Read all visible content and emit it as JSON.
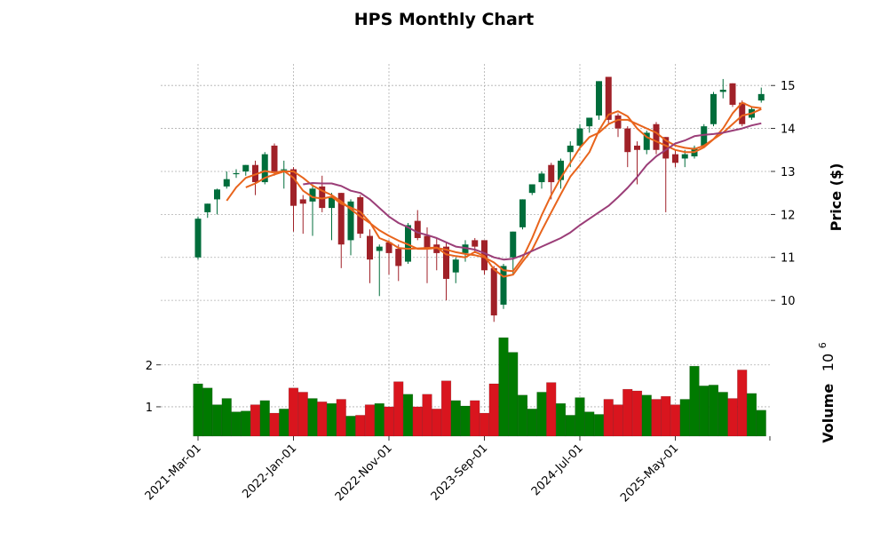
{
  "chart_data": {
    "type": "candlestick",
    "title": "HPS Monthly Chart",
    "price_panel": {
      "ylabel": "Price ($)",
      "ylim": [
        9.3,
        15.5
      ],
      "yticks": [
        "10",
        "11",
        "12",
        "13",
        "14",
        "15"
      ],
      "grid": true
    },
    "volume_panel": {
      "ylabel": "Volume",
      "ylabel_exponent": "10",
      "ylabel_exponent_power": "6",
      "ylim": [
        0.3,
        2.8
      ],
      "yticks": [
        "1",
        "2"
      ],
      "grid": true
    },
    "x_tick_labels": [
      "2021-Mar-01",
      "2022-Jan-01",
      "2022-Nov-01",
      "2023-Sep-01",
      "2024-Jul-01",
      "2025-May-01"
    ],
    "x_tick_indices": [
      0,
      10,
      20,
      30,
      40,
      50
    ],
    "colors": {
      "up": "#006d3b",
      "down": "#a02128",
      "volume_up": "#007a00",
      "volume_down": "#d9151e",
      "ma_fast": "#e8641c",
      "ma_mid": "#e8641c",
      "ma_slow": "#9b3e78"
    },
    "candles": [
      {
        "month": "2021-Mar",
        "open": 11.0,
        "high": 11.95,
        "low": 10.95,
        "close": 11.9
      },
      {
        "month": "2021-Apr",
        "open": 12.05,
        "high": 12.25,
        "low": 11.92,
        "close": 12.25
      },
      {
        "month": "2021-May",
        "open": 12.35,
        "high": 12.6,
        "low": 12.0,
        "close": 12.58
      },
      {
        "month": "2021-Jun",
        "open": 12.65,
        "high": 13.0,
        "low": 12.6,
        "close": 12.82
      },
      {
        "month": "2021-Jul",
        "open": 12.95,
        "high": 13.05,
        "low": 12.85,
        "close": 12.96
      },
      {
        "month": "2021-Aug",
        "open": 13.0,
        "high": 13.15,
        "low": 12.9,
        "close": 13.15
      },
      {
        "month": "2021-Sep",
        "open": 13.15,
        "high": 13.25,
        "low": 12.45,
        "close": 12.75
      },
      {
        "month": "2021-Oct",
        "open": 12.75,
        "high": 13.45,
        "low": 12.7,
        "close": 13.4
      },
      {
        "month": "2021-Nov",
        "open": 13.6,
        "high": 13.65,
        "low": 12.9,
        "close": 13.0
      },
      {
        "month": "2021-Dec",
        "open": 13.05,
        "high": 13.25,
        "low": 12.6,
        "close": 13.05
      },
      {
        "month": "2022-Jan",
        "open": 13.05,
        "high": 13.1,
        "low": 11.6,
        "close": 12.2
      },
      {
        "month": "2022-Feb",
        "open": 12.35,
        "high": 12.45,
        "low": 11.55,
        "close": 12.25
      },
      {
        "month": "2022-Mar",
        "open": 12.3,
        "high": 12.7,
        "low": 11.5,
        "close": 12.6
      },
      {
        "month": "2022-Apr",
        "open": 12.65,
        "high": 12.9,
        "low": 12.05,
        "close": 12.15
      },
      {
        "month": "2022-May",
        "open": 12.15,
        "high": 12.5,
        "low": 11.4,
        "close": 12.4
      },
      {
        "month": "2022-Jun",
        "open": 12.5,
        "high": 12.5,
        "low": 10.75,
        "close": 11.3
      },
      {
        "month": "2022-Jul",
        "open": 11.4,
        "high": 12.35,
        "low": 11.05,
        "close": 12.3
      },
      {
        "month": "2022-Aug",
        "open": 12.4,
        "high": 12.45,
        "low": 11.45,
        "close": 11.55
      },
      {
        "month": "2022-Sep",
        "open": 11.5,
        "high": 11.65,
        "low": 10.4,
        "close": 10.95
      },
      {
        "month": "2022-Oct",
        "open": 11.15,
        "high": 11.3,
        "low": 10.1,
        "close": 11.25
      },
      {
        "month": "2022-Nov",
        "open": 11.35,
        "high": 11.4,
        "low": 10.6,
        "close": 11.1
      },
      {
        "month": "2022-Dec",
        "open": 11.2,
        "high": 11.3,
        "low": 10.45,
        "close": 10.8
      },
      {
        "month": "2023-Jan",
        "open": 10.9,
        "high": 11.8,
        "low": 10.85,
        "close": 11.75
      },
      {
        "month": "2023-Feb",
        "open": 11.85,
        "high": 12.1,
        "low": 11.4,
        "close": 11.45
      },
      {
        "month": "2023-Mar",
        "open": 11.5,
        "high": 11.7,
        "low": 10.4,
        "close": 11.2
      },
      {
        "month": "2023-Apr",
        "open": 11.3,
        "high": 11.45,
        "low": 10.7,
        "close": 11.1
      },
      {
        "month": "2023-May",
        "open": 11.25,
        "high": 11.35,
        "low": 10.0,
        "close": 10.5
      },
      {
        "month": "2023-Jun",
        "open": 10.65,
        "high": 11.0,
        "low": 10.4,
        "close": 10.95
      },
      {
        "month": "2023-Jul",
        "open": 11.1,
        "high": 11.4,
        "low": 10.9,
        "close": 11.3
      },
      {
        "month": "2023-Aug",
        "open": 11.4,
        "high": 11.45,
        "low": 11.1,
        "close": 11.25
      },
      {
        "month": "2023-Sep",
        "open": 11.4,
        "high": 11.4,
        "low": 10.6,
        "close": 10.7
      },
      {
        "month": "2023-Oct",
        "open": 10.75,
        "high": 10.8,
        "low": 9.5,
        "close": 9.65
      },
      {
        "month": "2023-Nov",
        "open": 9.9,
        "high": 10.85,
        "low": 9.8,
        "close": 10.8
      },
      {
        "month": "2023-Dec",
        "open": 11.0,
        "high": 11.6,
        "low": 10.6,
        "close": 11.6
      },
      {
        "month": "2024-Jan",
        "open": 11.7,
        "high": 12.35,
        "low": 11.65,
        "close": 12.35
      },
      {
        "month": "2024-Feb",
        "open": 12.5,
        "high": 12.7,
        "low": 12.45,
        "close": 12.7
      },
      {
        "month": "2024-Mar",
        "open": 12.75,
        "high": 13.0,
        "low": 12.6,
        "close": 12.95
      },
      {
        "month": "2024-Apr",
        "open": 13.15,
        "high": 13.2,
        "low": 12.35,
        "close": 12.75
      },
      {
        "month": "2024-May",
        "open": 12.8,
        "high": 13.3,
        "low": 12.6,
        "close": 13.25
      },
      {
        "month": "2024-Jun",
        "open": 13.45,
        "high": 13.7,
        "low": 13.1,
        "close": 13.6
      },
      {
        "month": "2024-Jul",
        "open": 13.6,
        "high": 14.1,
        "low": 13.5,
        "close": 14.0
      },
      {
        "month": "2024-Aug",
        "open": 14.05,
        "high": 14.25,
        "low": 13.9,
        "close": 14.25
      },
      {
        "month": "2024-Sep",
        "open": 14.3,
        "high": 15.1,
        "low": 14.2,
        "close": 15.1
      },
      {
        "month": "2024-Oct",
        "open": 15.2,
        "high": 15.2,
        "low": 14.1,
        "close": 14.2
      },
      {
        "month": "2024-Nov",
        "open": 14.3,
        "high": 14.35,
        "low": 13.8,
        "close": 14.0
      },
      {
        "month": "2024-Dec",
        "open": 14.0,
        "high": 14.05,
        "low": 13.1,
        "close": 13.45
      },
      {
        "month": "2025-Jan",
        "open": 13.6,
        "high": 13.7,
        "low": 12.7,
        "close": 13.5
      },
      {
        "month": "2025-Feb",
        "open": 13.5,
        "high": 13.95,
        "low": 13.4,
        "close": 13.9
      },
      {
        "month": "2025-Mar",
        "open": 14.1,
        "high": 14.15,
        "low": 13.4,
        "close": 13.5
      },
      {
        "month": "2025-Apr",
        "open": 13.8,
        "high": 13.8,
        "low": 12.05,
        "close": 13.3
      },
      {
        "month": "2025-May",
        "open": 13.4,
        "high": 13.5,
        "low": 13.1,
        "close": 13.2
      },
      {
        "month": "2025-Jun",
        "open": 13.3,
        "high": 13.5,
        "low": 13.1,
        "close": 13.4
      },
      {
        "month": "2025-Jul",
        "open": 13.35,
        "high": 13.6,
        "low": 13.3,
        "close": 13.55
      },
      {
        "month": "2025-Aug",
        "open": 13.6,
        "high": 14.1,
        "low": 13.55,
        "close": 14.05
      },
      {
        "month": "2025-Sep",
        "open": 14.1,
        "high": 14.85,
        "low": 14.05,
        "close": 14.8
      },
      {
        "month": "2025-Oct",
        "open": 14.85,
        "high": 15.15,
        "low": 14.7,
        "close": 14.9
      },
      {
        "month": "2025-Nov",
        "open": 15.05,
        "high": 15.05,
        "low": 14.5,
        "close": 14.55
      },
      {
        "month": "2025-Dec",
        "open": 14.6,
        "high": 14.65,
        "low": 14.05,
        "close": 14.1
      },
      {
        "month": "2026-Jan",
        "open": 14.25,
        "high": 14.5,
        "low": 14.2,
        "close": 14.45
      },
      {
        "month": "2026-Feb",
        "open": 14.65,
        "high": 14.95,
        "low": 14.6,
        "close": 14.8
      }
    ],
    "volume": [
      1.55,
      1.45,
      1.05,
      1.2,
      0.88,
      0.9,
      1.05,
      1.15,
      0.85,
      0.95,
      1.45,
      1.35,
      1.2,
      1.12,
      1.08,
      1.18,
      0.78,
      0.8,
      1.05,
      1.08,
      1.0,
      1.6,
      1.3,
      1.0,
      1.3,
      0.95,
      1.62,
      1.15,
      1.02,
      1.15,
      0.85,
      1.55,
      2.65,
      2.3,
      1.28,
      0.95,
      1.35,
      1.58,
      1.08,
      0.8,
      1.22,
      0.88,
      0.82,
      1.18,
      1.05,
      1.42,
      1.38,
      1.28,
      1.18,
      1.25,
      1.05,
      1.18,
      1.97,
      1.5,
      1.52,
      1.35,
      1.2,
      1.88,
      1.32,
      0.92
    ],
    "moving_averages": [
      {
        "label": "fast",
        "values": [
          null,
          null,
          null,
          12.32,
          12.63,
          12.85,
          12.93,
          13.01,
          12.97,
          13.01,
          12.85,
          12.55,
          12.4,
          12.37,
          12.41,
          12.25,
          12.16,
          12.06,
          11.82,
          11.45,
          11.36,
          11.22,
          11.2,
          11.21,
          11.22,
          11.23,
          11.07,
          11.03,
          11.0,
          11.13,
          11.03,
          10.72,
          10.55,
          10.6,
          10.9,
          11.18,
          11.62,
          12.05,
          12.47,
          12.88,
          13.15,
          13.45,
          13.95,
          14.32,
          14.4,
          14.28,
          14.0,
          13.8,
          13.7,
          13.6,
          13.5,
          13.45,
          13.45,
          13.56,
          13.75,
          14.0,
          14.35,
          14.6,
          14.5,
          14.47
        ]
      },
      {
        "label": "mid",
        "values": [
          null,
          null,
          null,
          null,
          null,
          12.63,
          12.72,
          12.85,
          12.93,
          13.0,
          13.0,
          12.85,
          12.67,
          12.55,
          12.45,
          12.3,
          12.12,
          11.95,
          11.8,
          11.63,
          11.5,
          11.39,
          11.3,
          11.2,
          11.2,
          11.22,
          11.18,
          11.12,
          11.08,
          11.05,
          11.0,
          10.88,
          10.7,
          10.68,
          10.98,
          11.45,
          11.98,
          12.45,
          12.85,
          13.2,
          13.55,
          13.8,
          13.9,
          14.1,
          14.2,
          14.2,
          14.1,
          14.0,
          13.9,
          13.72,
          13.6,
          13.55,
          13.52,
          13.6,
          13.75,
          13.9,
          14.1,
          14.3,
          14.35,
          14.45
        ]
      },
      {
        "label": "slow",
        "values": [
          null,
          null,
          null,
          null,
          null,
          null,
          null,
          null,
          null,
          null,
          null,
          12.7,
          12.73,
          12.72,
          12.72,
          12.66,
          12.55,
          12.5,
          12.35,
          12.15,
          11.95,
          11.8,
          11.7,
          11.58,
          11.52,
          11.45,
          11.35,
          11.25,
          11.22,
          11.18,
          11.1,
          11.0,
          10.95,
          10.97,
          11.05,
          11.15,
          11.25,
          11.35,
          11.45,
          11.58,
          11.75,
          11.9,
          12.05,
          12.2,
          12.4,
          12.62,
          12.87,
          13.15,
          13.35,
          13.5,
          13.65,
          13.72,
          13.82,
          13.85,
          13.87,
          13.9,
          13.95,
          14.0,
          14.07,
          14.12
        ]
      }
    ]
  }
}
